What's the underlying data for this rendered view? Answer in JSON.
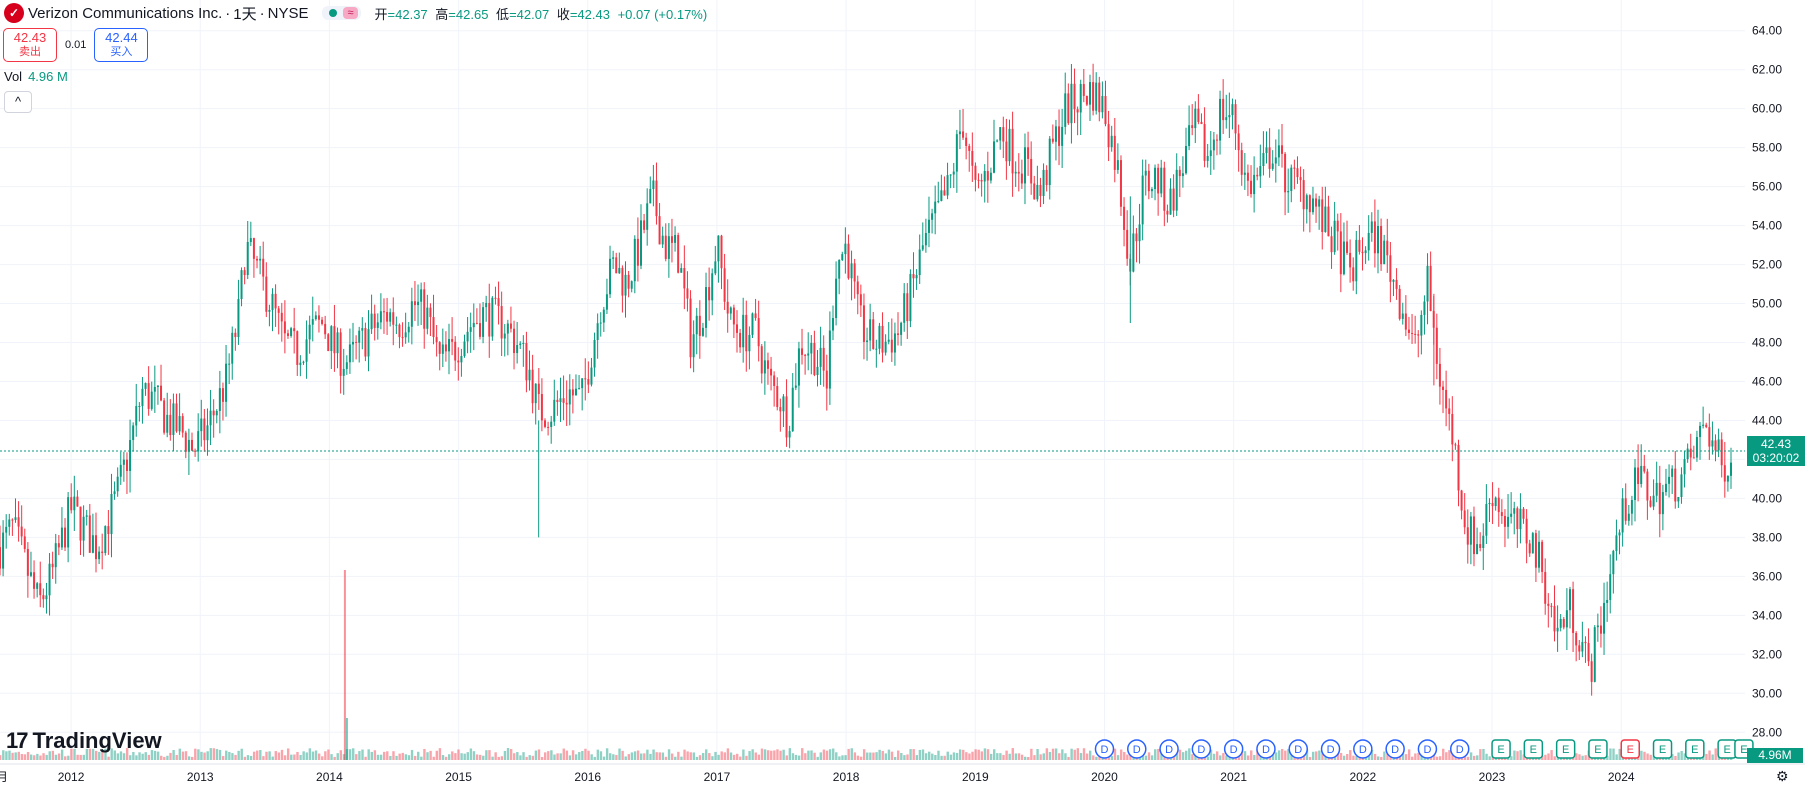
{
  "header": {
    "logo_letter": "✓",
    "title": "Verizon Communications Inc.",
    "interval": "1天",
    "exchange": "NYSE",
    "open_label": "开",
    "open": "=42.37",
    "high_label": "高",
    "high": "=42.65",
    "low_label": "低",
    "low": "=42.07",
    "close_label": "收",
    "close": "=42.43",
    "change": "+0.07 (+0.17%)",
    "wave_icon": "≈"
  },
  "trade": {
    "sell_price": "42.43",
    "sell_label": "卖出",
    "spread": "0.01",
    "buy_price": "42.44",
    "buy_label": "买入"
  },
  "volume": {
    "label": "Vol",
    "value": "4.96 M",
    "axis_value": "4.96M"
  },
  "collapse_icon": "^",
  "branding": {
    "name": "TradingView",
    "mark": "17"
  },
  "current_price": {
    "value": "42.43",
    "countdown": "03:20:02"
  },
  "settings_icon": "⚙",
  "colors": {
    "up": "#089981",
    "down": "#f23645",
    "grid": "#f0f3fa",
    "price_line": "#089981",
    "dividend": "#2962ff",
    "earnings_up": "#089981",
    "earnings_down": "#f23645"
  },
  "chart_data": {
    "type": "candlestick",
    "title": "Verizon Communications Inc. · 1天 · NYSE",
    "xlabel": "",
    "ylabel": "",
    "ylim": [
      27.5,
      66.5
    ],
    "yticks": [
      "28.00",
      "30.00",
      "32.00",
      "34.00",
      "36.00",
      "38.00",
      "40.00",
      "42.00",
      "44.00",
      "46.00",
      "48.00",
      "50.00",
      "52.00",
      "54.00",
      "56.00",
      "58.00",
      "60.00",
      "62.00",
      "64.00",
      "66.00"
    ],
    "x_start": 2011.45,
    "x_end": 2024.85,
    "xticks": [
      "2012",
      "2013",
      "2014",
      "2015",
      "2016",
      "2017",
      "2018",
      "2019",
      "2020",
      "2021",
      "2022",
      "2023",
      "2024"
    ],
    "x_left_partial": "月",
    "price_path": [
      [
        2011.45,
        37.5
      ],
      [
        2011.55,
        38.5
      ],
      [
        2011.65,
        36.5
      ],
      [
        2011.75,
        34.5
      ],
      [
        2011.85,
        36.0
      ],
      [
        2012.0,
        39.5
      ],
      [
        2012.1,
        38.5
      ],
      [
        2012.2,
        37.5
      ],
      [
        2012.35,
        40.0
      ],
      [
        2012.45,
        42.5
      ],
      [
        2012.55,
        45.5
      ],
      [
        2012.65,
        45.0
      ],
      [
        2012.75,
        44.0
      ],
      [
        2012.85,
        43.5
      ],
      [
        2012.95,
        42.5
      ],
      [
        2013.05,
        43.5
      ],
      [
        2013.2,
        46.0
      ],
      [
        2013.3,
        49.5
      ],
      [
        2013.35,
        53.0
      ],
      [
        2013.45,
        51.5
      ],
      [
        2013.55,
        50.0
      ],
      [
        2013.65,
        48.0
      ],
      [
        2013.75,
        47.5
      ],
      [
        2013.85,
        48.5
      ],
      [
        2013.95,
        49.0
      ],
      [
        2014.05,
        47.5
      ],
      [
        2014.15,
        47.0
      ],
      [
        2014.3,
        48.5
      ],
      [
        2014.45,
        49.5
      ],
      [
        2014.55,
        49.0
      ],
      [
        2014.65,
        50.0
      ],
      [
        2014.75,
        49.5
      ],
      [
        2014.85,
        47.0
      ],
      [
        2014.95,
        47.5
      ],
      [
        2015.1,
        49.0
      ],
      [
        2015.2,
        49.5
      ],
      [
        2015.35,
        49.0
      ],
      [
        2015.45,
        48.0
      ],
      [
        2015.55,
        46.5
      ],
      [
        2015.62,
        44.5
      ],
      [
        2015.72,
        44.5
      ],
      [
        2015.85,
        45.5
      ],
      [
        2015.95,
        45.0
      ],
      [
        2016.1,
        50.0
      ],
      [
        2016.2,
        52.0
      ],
      [
        2016.3,
        51.0
      ],
      [
        2016.4,
        53.0
      ],
      [
        2016.5,
        55.5
      ],
      [
        2016.6,
        53.0
      ],
      [
        2016.7,
        52.5
      ],
      [
        2016.8,
        48.0
      ],
      [
        2016.9,
        50.0
      ],
      [
        2017.0,
        53.0
      ],
      [
        2017.1,
        49.0
      ],
      [
        2017.2,
        48.5
      ],
      [
        2017.3,
        48.5
      ],
      [
        2017.4,
        46.0
      ],
      [
        2017.5,
        45.0
      ],
      [
        2017.55,
        44.0
      ],
      [
        2017.65,
        48.0
      ],
      [
        2017.75,
        47.5
      ],
      [
        2017.85,
        46.0
      ],
      [
        2017.92,
        52.0
      ],
      [
        2018.0,
        53.0
      ],
      [
        2018.1,
        49.0
      ],
      [
        2018.2,
        48.0
      ],
      [
        2018.3,
        48.0
      ],
      [
        2018.4,
        48.5
      ],
      [
        2018.5,
        50.5
      ],
      [
        2018.6,
        53.0
      ],
      [
        2018.7,
        54.5
      ],
      [
        2018.8,
        56.0
      ],
      [
        2018.9,
        59.5
      ],
      [
        2019.0,
        55.5
      ],
      [
        2019.1,
        57.0
      ],
      [
        2019.2,
        59.0
      ],
      [
        2019.3,
        57.5
      ],
      [
        2019.4,
        57.0
      ],
      [
        2019.5,
        55.5
      ],
      [
        2019.6,
        58.0
      ],
      [
        2019.7,
        60.0
      ],
      [
        2019.8,
        60.5
      ],
      [
        2019.9,
        61.0
      ],
      [
        2020.0,
        60.0
      ],
      [
        2020.1,
        57.0
      ],
      [
        2020.2,
        52.0
      ],
      [
        2020.3,
        56.0
      ],
      [
        2020.4,
        56.5
      ],
      [
        2020.5,
        55.0
      ],
      [
        2020.6,
        57.0
      ],
      [
        2020.7,
        59.0
      ],
      [
        2020.8,
        57.5
      ],
      [
        2020.9,
        60.0
      ],
      [
        2021.0,
        59.5
      ],
      [
        2021.1,
        56.0
      ],
      [
        2021.2,
        56.5
      ],
      [
        2021.3,
        58.0
      ],
      [
        2021.4,
        56.5
      ],
      [
        2021.5,
        56.0
      ],
      [
        2021.6,
        55.5
      ],
      [
        2021.7,
        54.0
      ],
      [
        2021.8,
        53.0
      ],
      [
        2021.9,
        51.5
      ],
      [
        2022.0,
        53.0
      ],
      [
        2022.1,
        53.5
      ],
      [
        2022.2,
        52.0
      ],
      [
        2022.3,
        50.0
      ],
      [
        2022.4,
        47.5
      ],
      [
        2022.5,
        51.0
      ],
      [
        2022.6,
        46.0
      ],
      [
        2022.7,
        43.0
      ],
      [
        2022.8,
        38.5
      ],
      [
        2022.9,
        37.5
      ],
      [
        2023.0,
        40.5
      ],
      [
        2023.1,
        39.0
      ],
      [
        2023.2,
        38.5
      ],
      [
        2023.3,
        38.0
      ],
      [
        2023.4,
        36.0
      ],
      [
        2023.5,
        33.0
      ],
      [
        2023.6,
        34.5
      ],
      [
        2023.7,
        32.5
      ],
      [
        2023.75,
        31.0
      ],
      [
        2023.85,
        34.0
      ],
      [
        2023.95,
        37.5
      ],
      [
        2024.05,
        40.0
      ],
      [
        2024.15,
        41.0
      ],
      [
        2024.25,
        40.0
      ],
      [
        2024.35,
        40.5
      ],
      [
        2024.45,
        41.0
      ],
      [
        2024.55,
        42.0
      ],
      [
        2024.65,
        44.0
      ],
      [
        2024.7,
        43.0
      ],
      [
        2024.78,
        41.5
      ],
      [
        2024.85,
        42.43
      ]
    ],
    "current_price": 42.43,
    "volume_spike_year": 2014.12,
    "events": [
      "D",
      "D",
      "D",
      "D",
      "D",
      "D",
      "D",
      "D",
      "D",
      "D",
      "D",
      "D",
      "E",
      "E",
      "E",
      "E",
      "E",
      "E",
      "E",
      "E",
      "E"
    ],
    "events_x": [
      2020.0,
      2020.25,
      2020.5,
      2020.75,
      2021.0,
      2021.25,
      2021.5,
      2021.75,
      2022.0,
      2022.25,
      2022.5,
      2022.75,
      2023.07,
      2023.32,
      2023.57,
      2023.82,
      2024.07,
      2024.32,
      2024.57,
      2024.82,
      2024.95
    ],
    "event_colors": [
      "d",
      "d",
      "d",
      "d",
      "d",
      "d",
      "d",
      "d",
      "d",
      "d",
      "d",
      "d",
      "e",
      "e",
      "e",
      "e",
      "r",
      "e",
      "e",
      "e",
      "e"
    ]
  }
}
